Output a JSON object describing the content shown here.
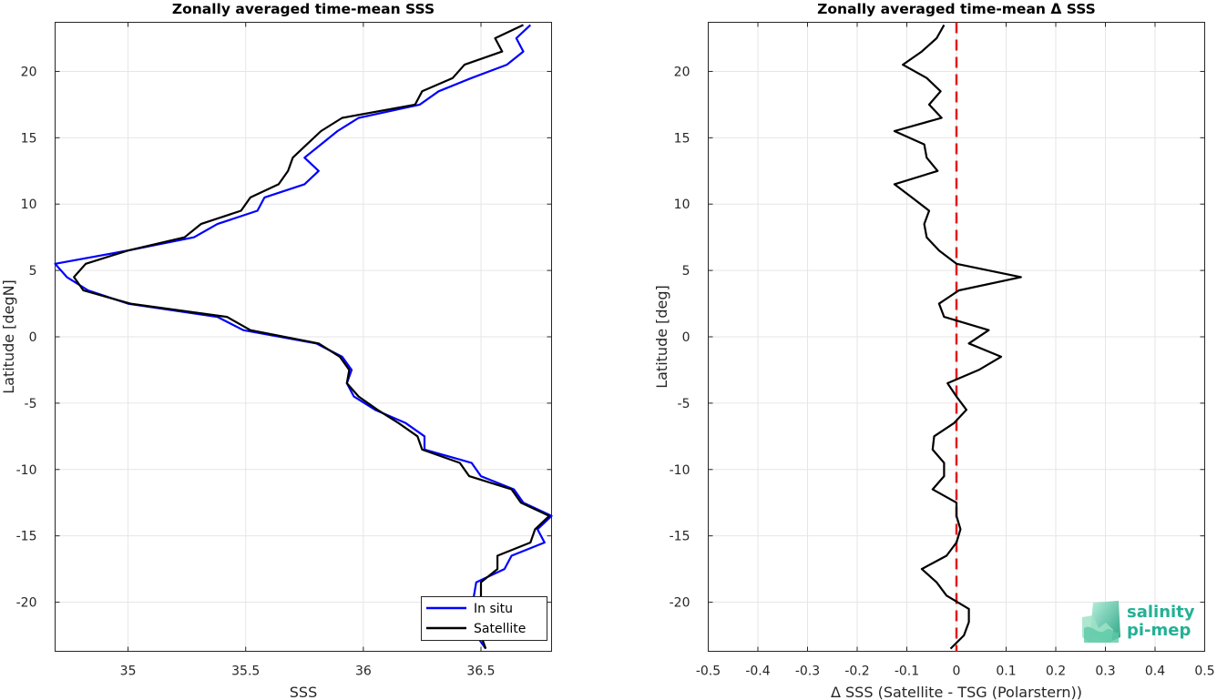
{
  "chart_data": [
    {
      "type": "line",
      "title": "Zonally averaged time-mean SSS",
      "xlabel": "SSS",
      "ylabel": "Latitude [degN]",
      "xlim": [
        34.69,
        36.8
      ],
      "ylim": [
        -23.7,
        23.7
      ],
      "xticks": [
        35,
        35.5,
        36,
        36.5
      ],
      "xtick_labels": [
        "35",
        "35.5",
        "36",
        "36.5"
      ],
      "yticks": [
        -20,
        -15,
        -10,
        -5,
        0,
        5,
        10,
        15,
        20
      ],
      "ytick_labels": [
        "-20",
        "-15",
        "-10",
        "-5",
        "0",
        "5",
        "10",
        "15",
        "20"
      ],
      "grid": true,
      "legend_position": "bottom-right",
      "series": [
        {
          "name": "In situ",
          "color": "#0000ff",
          "lat": [
            23.5,
            22.5,
            21.5,
            20.5,
            19.5,
            18.5,
            17.5,
            16.5,
            15.5,
            14.5,
            13.5,
            12.5,
            11.5,
            10.5,
            9.5,
            8.5,
            7.5,
            6.5,
            5.5,
            4.5,
            3.5,
            2.5,
            1.5,
            0.5,
            -0.5,
            -1.5,
            -2.5,
            -3.5,
            -4.5,
            -5.5,
            -6.5,
            -7.5,
            -8.5,
            -9.5,
            -10.5,
            -11.5,
            -12.5,
            -13.5,
            -14.5,
            -15.5,
            -16.5,
            -17.5,
            -18.5,
            -19.5,
            -20.5,
            -21.5,
            -22.5,
            -23.5
          ],
          "sss": [
            36.71,
            36.65,
            36.68,
            36.61,
            36.46,
            36.32,
            36.24,
            35.98,
            35.89,
            35.82,
            35.75,
            35.81,
            35.75,
            35.58,
            35.55,
            35.38,
            35.28,
            35.0,
            34.69,
            34.74,
            34.83,
            35.0,
            35.38,
            35.49,
            35.8,
            35.91,
            35.95,
            35.93,
            35.96,
            36.05,
            36.18,
            36.26,
            36.26,
            36.46,
            36.5,
            36.64,
            36.68,
            36.8,
            36.74,
            36.77,
            36.63,
            36.6,
            36.48,
            36.47,
            36.46,
            36.47,
            36.48,
            36.52
          ]
        },
        {
          "name": "Satellite",
          "color": "#000000",
          "lat": [
            23.5,
            22.5,
            21.5,
            20.5,
            19.5,
            18.5,
            17.5,
            16.5,
            15.5,
            14.5,
            13.5,
            12.5,
            11.5,
            10.5,
            9.5,
            8.5,
            7.5,
            6.5,
            5.5,
            4.5,
            3.5,
            2.5,
            1.5,
            0.5,
            -0.5,
            -1.5,
            -2.5,
            -3.5,
            -4.5,
            -5.5,
            -6.5,
            -7.5,
            -8.5,
            -9.5,
            -10.5,
            -11.5,
            -12.5,
            -13.5,
            -14.5,
            -15.5,
            -16.5,
            -17.5,
            -18.5,
            -19.5,
            -20.5,
            -21.5,
            -22.5,
            -23.5
          ],
          "sss": [
            36.68,
            36.56,
            36.59,
            36.43,
            36.38,
            36.25,
            36.22,
            35.91,
            35.82,
            35.76,
            35.7,
            35.68,
            35.64,
            35.52,
            35.48,
            35.31,
            35.24,
            35.0,
            34.82,
            34.77,
            34.81,
            35.01,
            35.42,
            35.52,
            35.81,
            35.9,
            35.94,
            35.93,
            35.98,
            36.06,
            36.15,
            36.23,
            36.25,
            36.41,
            36.45,
            36.63,
            36.67,
            36.79,
            36.73,
            36.71,
            36.57,
            36.57,
            36.5,
            36.5,
            36.49,
            36.49,
            36.5,
            36.52
          ]
        }
      ]
    },
    {
      "type": "line",
      "title": "Zonally averaged time-mean Δ SSS",
      "xlabel": "Δ SSS (Satellite - TSG (Polarstern))",
      "ylabel": "Latitude [deg]",
      "xlim": [
        -0.5,
        0.5
      ],
      "ylim": [
        -23.7,
        23.7
      ],
      "xticks": [
        -0.5,
        -0.4,
        -0.3,
        -0.2,
        -0.1,
        0,
        0.1,
        0.2,
        0.3,
        0.4,
        0.5
      ],
      "xtick_labels": [
        "-0.5",
        "-0.4",
        "-0.3",
        "-0.2",
        "-0.1",
        "0",
        "0.1",
        "0.2",
        "0.3",
        "0.4",
        "0.5"
      ],
      "yticks": [
        -20,
        -15,
        -10,
        -5,
        0,
        5,
        10,
        15,
        20
      ],
      "ytick_labels": [
        "-20",
        "-15",
        "-10",
        "-5",
        "0",
        "5",
        "10",
        "15",
        "20"
      ],
      "grid": true,
      "zero_line": {
        "x": 0,
        "color": "#e31a1c",
        "style": "dashed"
      },
      "series": [
        {
          "color": "#000000",
          "lat": [
            23.5,
            22.5,
            21.5,
            20.5,
            19.5,
            18.5,
            17.5,
            16.5,
            15.5,
            14.5,
            13.5,
            12.5,
            11.5,
            10.5,
            9.5,
            8.5,
            7.5,
            6.5,
            5.5,
            4.5,
            3.5,
            2.5,
            1.5,
            0.5,
            -0.5,
            -1.5,
            -2.5,
            -3.5,
            -4.5,
            -5.5,
            -6.5,
            -7.5,
            -8.5,
            -9.5,
            -10.5,
            -11.5,
            -12.5,
            -13.5,
            -14.5,
            -15.5,
            -16.5,
            -17.5,
            -18.5,
            -19.5,
            -20.5,
            -21.5,
            -22.5,
            -23.5
          ],
          "dsss": [
            -0.025,
            -0.04,
            -0.07,
            -0.108,
            -0.06,
            -0.032,
            -0.055,
            -0.03,
            -0.125,
            -0.065,
            -0.06,
            -0.038,
            -0.125,
            -0.09,
            -0.055,
            -0.065,
            -0.06,
            -0.035,
            0.0,
            0.13,
            0.005,
            -0.035,
            -0.025,
            0.065,
            0.025,
            0.09,
            0.045,
            -0.018,
            0.0,
            0.02,
            -0.005,
            -0.045,
            -0.048,
            -0.025,
            -0.025,
            -0.048,
            0.0,
            0.0,
            0.008,
            0.0,
            -0.02,
            -0.07,
            -0.04,
            -0.02,
            0.025,
            0.025,
            0.015,
            -0.012
          ]
        }
      ]
    }
  ],
  "logo": {
    "line1": "salinity",
    "line2": "pi-mep"
  }
}
